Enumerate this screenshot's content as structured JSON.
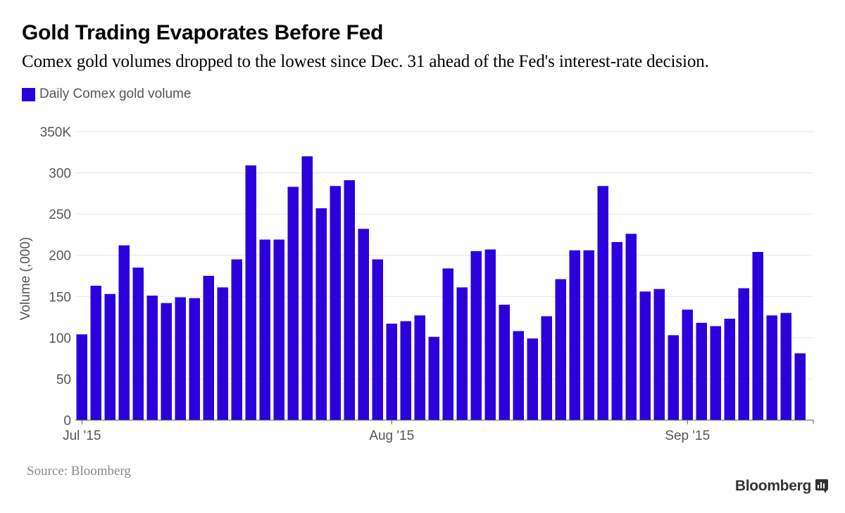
{
  "header": {
    "title": "Gold Trading Evaporates Before Fed",
    "subtitle": "Comex gold volumes dropped to the lowest since Dec. 31 ahead of the Fed's interest-rate decision."
  },
  "legend": {
    "label": "Daily Comex gold volume"
  },
  "footer": {
    "source": "Source: Bloomberg",
    "brand": "Bloomberg"
  },
  "colors": {
    "bar": "#2a00dd",
    "grid": "#e6e6e6",
    "axis": "#555555",
    "text": "#555555"
  },
  "chart_data": {
    "type": "bar",
    "title": "Gold Trading Evaporates Before Fed",
    "xlabel": "",
    "ylabel": "Volume (,000)",
    "ylim": [
      0,
      350
    ],
    "yticks": [
      0,
      50,
      100,
      150,
      200,
      250,
      300,
      350
    ],
    "ytick_labels": [
      "0",
      "50",
      "100",
      "150",
      "200",
      "250",
      "300",
      "350K"
    ],
    "grid": true,
    "series": [
      {
        "name": "Daily Comex gold volume"
      }
    ],
    "values": [
      104,
      163,
      153,
      212,
      185,
      151,
      142,
      149,
      148,
      175,
      161,
      195,
      309,
      219,
      219,
      283,
      320,
      257,
      284,
      291,
      232,
      195,
      117,
      120,
      127,
      101,
      184,
      161,
      205,
      207,
      140,
      108,
      99,
      126,
      171,
      206,
      206,
      284,
      216,
      226,
      156,
      159,
      103,
      134,
      118,
      114,
      123,
      160,
      204,
      127,
      130,
      81
    ],
    "xtick_labels": [
      {
        "label": "Jul '15",
        "index": 0
      },
      {
        "label": "Aug '15",
        "index": 22
      },
      {
        "label": "Sep '15",
        "index": 43
      }
    ]
  }
}
